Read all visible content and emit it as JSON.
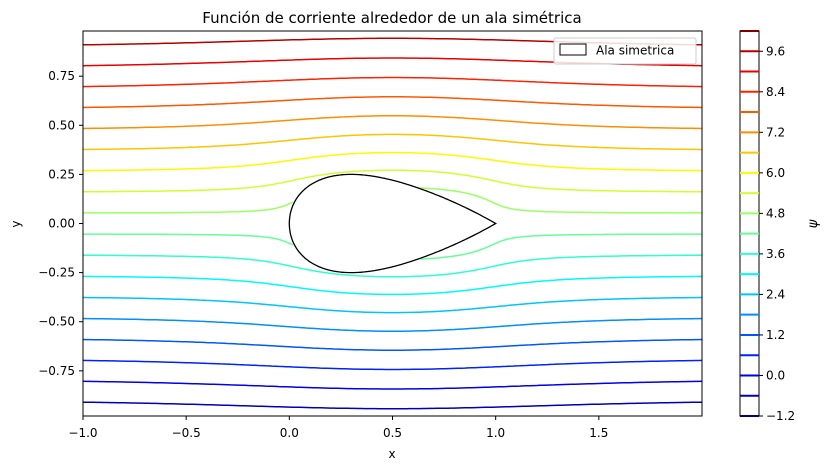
{
  "chart_data": {
    "type": "contour",
    "title": "Función de corriente alrededor de un ala simétrica",
    "xlabel": "x",
    "ylabel": "y",
    "xlim": [
      -1.0,
      2.0
    ],
    "ylim": [
      -0.98,
      0.98
    ],
    "x_ticks": [
      -1.0,
      -0.5,
      0.0,
      0.5,
      1.0,
      1.5
    ],
    "x_tick_labels": [
      "−1.0",
      "−0.5",
      "0.0",
      "0.5",
      "1.0",
      "1.5"
    ],
    "y_ticks": [
      -0.75,
      -0.5,
      -0.25,
      0.0,
      0.25,
      0.5,
      0.75
    ],
    "y_tick_labels": [
      "−0.75",
      "−0.50",
      "−0.25",
      "0.00",
      "0.25",
      "0.50",
      "0.75"
    ],
    "grid": false,
    "legend": {
      "position": "top-right",
      "entries": [
        "Ala simetrica"
      ]
    },
    "airfoil": {
      "name": "Ala simetrica",
      "leading_edge_x": 0.0,
      "trailing_edge_x": 1.0,
      "max_half_thickness": 0.25,
      "max_thickness_x": 0.3,
      "edge_color": "#000000",
      "fill_color": "#ffffff"
    },
    "contour_levels": [
      -1.2,
      -0.6,
      0.0,
      0.6,
      1.2,
      1.8,
      2.4,
      3.0,
      3.6,
      4.2,
      4.8,
      5.4,
      6.0,
      6.6,
      7.2,
      7.8,
      8.4,
      9.0,
      9.6,
      10.2
    ],
    "colorbar": {
      "label": "ψ",
      "tick_values": [
        -1.2,
        0.0,
        1.2,
        2.4,
        3.6,
        4.8,
        6.0,
        7.2,
        8.4,
        9.6
      ],
      "tick_labels": [
        "−1.2",
        "0.0",
        "1.2",
        "2.4",
        "3.6",
        "4.8",
        "6.0",
        "7.2",
        "8.4",
        "9.6"
      ],
      "range": [
        -1.2,
        10.2
      ],
      "colormap": "jet"
    }
  }
}
